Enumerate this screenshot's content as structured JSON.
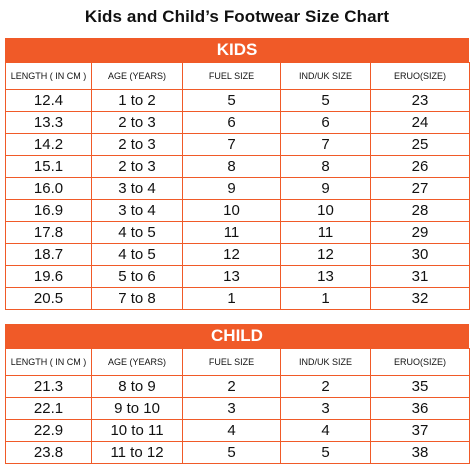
{
  "title": "Kids and Child’s  Footwear Size Chart",
  "accent_color": "#f05a28",
  "kids": {
    "heading": "KIDS",
    "columns": [
      "LENGTH ( IN CM )",
      "AGE (YEARS)",
      "FUEL SIZE",
      "IND/UK SIZE",
      "ERUO(SIZE)"
    ],
    "rows": [
      [
        "12.4",
        "1 to 2",
        "5",
        "5",
        "23"
      ],
      [
        "13.3",
        "2 to 3",
        "6",
        "6",
        "24"
      ],
      [
        "14.2",
        "2 to 3",
        "7",
        "7",
        "25"
      ],
      [
        "15.1",
        "2 to 3",
        "8",
        "8",
        "26"
      ],
      [
        "16.0",
        "3 to 4",
        "9",
        "9",
        "27"
      ],
      [
        "16.9",
        "3 to 4",
        "10",
        "10",
        "28"
      ],
      [
        "17.8",
        "4 to 5",
        "11",
        "11",
        "29"
      ],
      [
        "18.7",
        "4 to 5",
        "12",
        "12",
        "30"
      ],
      [
        "19.6",
        "5 to 6",
        "13",
        "13",
        "31"
      ],
      [
        "20.5",
        "7 to 8",
        "1",
        "1",
        "32"
      ]
    ]
  },
  "child": {
    "heading": "CHILD",
    "columns": [
      "LENGTH ( IN CM )",
      "AGE (YEARS)",
      "FUEL SIZE",
      "IND/UK SIZE",
      "ERUO(SIZE)"
    ],
    "rows": [
      [
        "21.3",
        "8 to 9",
        "2",
        "2",
        "35"
      ],
      [
        "22.1",
        "9 to 10",
        "3",
        "3",
        "36"
      ],
      [
        "22.9",
        "10 to 11",
        "4",
        "4",
        "37"
      ],
      [
        "23.8",
        "11 to 12",
        "5",
        "5",
        "38"
      ]
    ]
  }
}
